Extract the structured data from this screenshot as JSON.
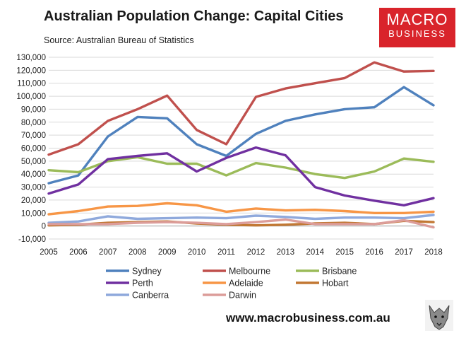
{
  "header": {
    "title": "Australian Population Change: Capital Cities",
    "source": "Source: Australian Bureau of Statistics"
  },
  "logo": {
    "line1": "MACRO",
    "line2": "BUSINESS"
  },
  "footer": {
    "url": "www.macrobusiness.com.au"
  },
  "chart_data": {
    "type": "line",
    "title": "Australian Population Change: Capital Cities",
    "x": [
      2005,
      2006,
      2007,
      2008,
      2009,
      2010,
      2011,
      2012,
      2013,
      2014,
      2015,
      2016,
      2017,
      2018
    ],
    "ylim": [
      -10000,
      130000
    ],
    "yticks": [
      -10000,
      0,
      10000,
      20000,
      30000,
      40000,
      50000,
      60000,
      70000,
      80000,
      90000,
      100000,
      110000,
      120000,
      130000
    ],
    "grid": true,
    "legend_position": "bottom",
    "series": [
      {
        "name": "Sydney",
        "color": "#4f81bd",
        "values": [
          33000,
          39000,
          69000,
          84000,
          83000,
          63000,
          54000,
          71000,
          81000,
          86000,
          90000,
          91500,
          107000,
          93000
        ]
      },
      {
        "name": "Melbourne",
        "color": "#c0504d",
        "values": [
          55000,
          63000,
          81000,
          90000,
          100500,
          74000,
          63000,
          99500,
          106000,
          110000,
          114000,
          126000,
          119000,
          119500
        ]
      },
      {
        "name": "Brisbane",
        "color": "#9bbb59",
        "values": [
          43000,
          41500,
          50000,
          53000,
          48000,
          48000,
          39000,
          48500,
          45000,
          40000,
          37000,
          42000,
          52000,
          49500
        ]
      },
      {
        "name": "Perth",
        "color": "#7030a0",
        "values": [
          25000,
          32000,
          51500,
          54000,
          56000,
          42000,
          52500,
          60500,
          54500,
          30000,
          23500,
          19500,
          16000,
          21500
        ]
      },
      {
        "name": "Adelaide",
        "color": "#f79646",
        "values": [
          9000,
          11500,
          15000,
          15500,
          17500,
          16000,
          11000,
          13500,
          12000,
          12500,
          11500,
          10000,
          10000,
          11000
        ]
      },
      {
        "name": "Hobart",
        "color": "#c27834",
        "values": [
          500,
          1000,
          2500,
          3000,
          3500,
          2000,
          1000,
          500,
          1000,
          2000,
          2500,
          1500,
          4000,
          3000
        ]
      },
      {
        "name": "Canberra",
        "color": "#8fa9dc",
        "values": [
          2500,
          3500,
          7500,
          5500,
          6000,
          6500,
          6000,
          8000,
          7000,
          5500,
          6500,
          6500,
          6000,
          8500
        ]
      },
      {
        "name": "Darwin",
        "color": "#dc9d9a",
        "values": [
          1500,
          1500,
          1500,
          2500,
          3000,
          2500,
          1500,
          3000,
          5000,
          1500,
          1500,
          1500,
          4500,
          -1000
        ]
      }
    ]
  }
}
